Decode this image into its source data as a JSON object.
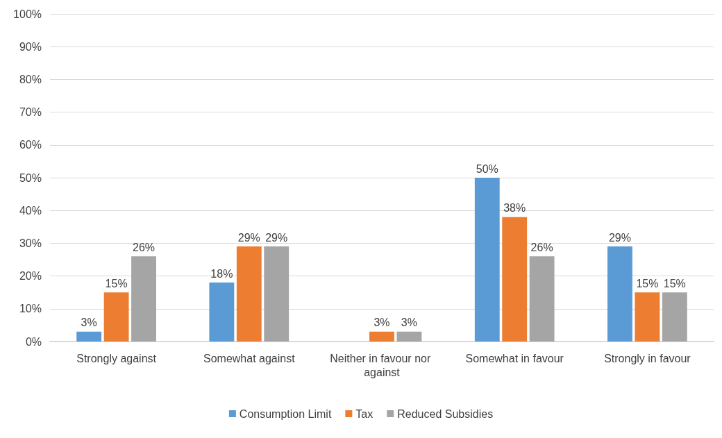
{
  "chart_data": {
    "type": "bar",
    "categories": [
      "Strongly against",
      "Somewhat against",
      "Neither in favour nor against",
      "Somewhat in favour",
      "Strongly in favour"
    ],
    "series": [
      {
        "name": "Consumption Limit",
        "color": "#5b9bd5",
        "values": [
          3,
          18,
          null,
          50,
          29
        ],
        "value_labels": [
          "3%",
          "18%",
          null,
          "50%",
          "29%"
        ]
      },
      {
        "name": "Tax",
        "color": "#ed7d31",
        "values": [
          15,
          29,
          3,
          38,
          15
        ],
        "value_labels": [
          "15%",
          "29%",
          "3%",
          "38%",
          "15%"
        ]
      },
      {
        "name": "Reduced Subsidies",
        "color": "#a5a5a5",
        "values": [
          26,
          29,
          3,
          26,
          15
        ],
        "value_labels": [
          "26%",
          "29%",
          "3%",
          "26%",
          "15%"
        ]
      }
    ],
    "ylim": [
      0,
      100
    ],
    "yticks": [
      {
        "value": 0,
        "label": "0%"
      },
      {
        "value": 10,
        "label": "10%"
      },
      {
        "value": 20,
        "label": "20%"
      },
      {
        "value": 30,
        "label": "30%"
      },
      {
        "value": 40,
        "label": "40%"
      },
      {
        "value": 50,
        "label": "50%"
      },
      {
        "value": 60,
        "label": "60%"
      },
      {
        "value": 70,
        "label": "70%"
      },
      {
        "value": 80,
        "label": "80%"
      },
      {
        "value": 90,
        "label": "90%"
      },
      {
        "value": 100,
        "label": "100%"
      }
    ],
    "grid": "y",
    "legend": "bottom"
  }
}
